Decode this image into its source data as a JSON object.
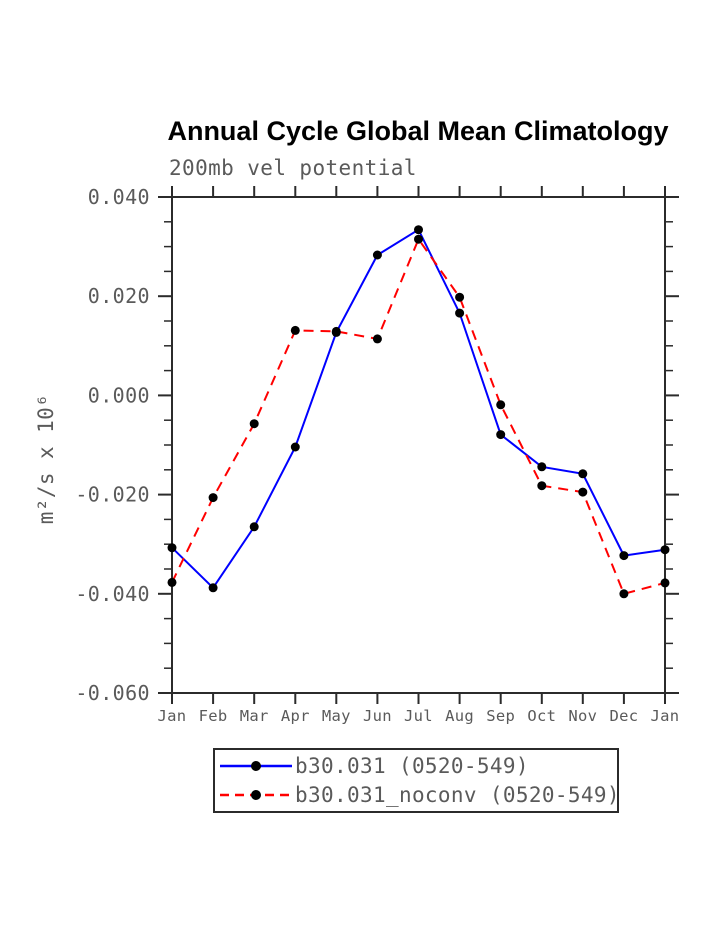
{
  "title": "Annual Cycle Global Mean Climatology",
  "subtitle": "200mb vel potential",
  "ylabel": "m²/s x 10⁶",
  "colors": {
    "series1": "#0000ff",
    "series2": "#ff0000",
    "marker": "#000000",
    "axis": "#2b2b2b",
    "label_gray": "#5a5a5a",
    "background": "#ffffff"
  },
  "legend": {
    "items": [
      {
        "label": "b30.031 (0520-549)",
        "color": "#0000ff",
        "style": "solid",
        "marker": "circle"
      },
      {
        "label": "b30.031_noconv (0520-549)",
        "color": "#ff0000",
        "style": "dashed",
        "marker": "circle"
      }
    ]
  },
  "chart_data": {
    "type": "line",
    "title": "Annual Cycle Global Mean Climatology",
    "subtitle": "200mb vel potential",
    "ylabel": "m²/s x 10⁶",
    "xlabel": "",
    "categories": [
      "Jan",
      "Feb",
      "Mar",
      "Apr",
      "May",
      "Jun",
      "Jul",
      "Aug",
      "Sep",
      "Oct",
      "Nov",
      "Dec",
      "Jan"
    ],
    "series": [
      {
        "name": "b30.031 (0520-549)",
        "color": "#0000ff",
        "style": "solid",
        "marker": "circle",
        "values": [
          -0.0307,
          -0.0388,
          -0.0265,
          -0.0104,
          0.0127,
          0.0283,
          0.0334,
          0.0166,
          -0.0079,
          -0.0144,
          -0.0158,
          -0.0323,
          -0.0311
        ]
      },
      {
        "name": "b30.031_noconv (0520-549)",
        "color": "#ff0000",
        "style": "dashed",
        "marker": "circle",
        "values": [
          -0.0377,
          -0.0206,
          -0.0057,
          0.0131,
          0.0129,
          0.0114,
          0.0315,
          0.0198,
          -0.0019,
          -0.0182,
          -0.0195,
          -0.04,
          -0.0378
        ]
      }
    ],
    "ylim": [
      -0.06,
      0.04
    ],
    "ytick_major_interval": 0.02,
    "ytick_minor_interval": 0.005,
    "ytick_labels": [
      "0.040",
      "0.020",
      "0.000",
      "-0.020",
      "-0.040",
      "-0.060"
    ],
    "grid": false,
    "frame": "box-outward-ticks",
    "legend_position": "bottom"
  }
}
